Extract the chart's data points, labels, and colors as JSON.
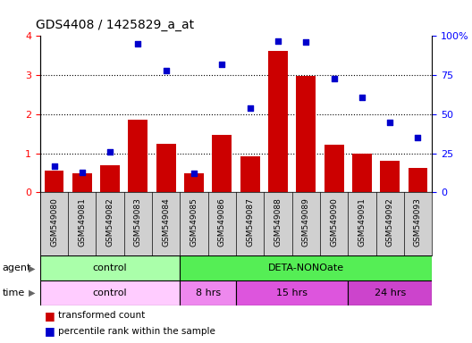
{
  "title": "GDS4408 / 1425829_a_at",
  "categories": [
    "GSM549080",
    "GSM549081",
    "GSM549082",
    "GSM549083",
    "GSM549084",
    "GSM549085",
    "GSM549086",
    "GSM549087",
    "GSM549088",
    "GSM549089",
    "GSM549090",
    "GSM549091",
    "GSM549092",
    "GSM549093"
  ],
  "bar_values": [
    0.55,
    0.5,
    0.7,
    1.85,
    1.25,
    0.5,
    1.48,
    0.92,
    3.62,
    2.98,
    1.22,
    1.0,
    0.82,
    0.62
  ],
  "scatter_values_pct": [
    17,
    13,
    26,
    95,
    78,
    12,
    82,
    54,
    97,
    96,
    73,
    61,
    45,
    35
  ],
  "bar_color": "#cc0000",
  "scatter_color": "#0000cc",
  "ylim_left": [
    0,
    4
  ],
  "ylim_right": [
    0,
    100
  ],
  "yticks_left": [
    0,
    1,
    2,
    3,
    4
  ],
  "ytick_labels_left": [
    "0",
    "1",
    "2",
    "3",
    "4"
  ],
  "yticks_right": [
    0,
    25,
    50,
    75,
    100
  ],
  "ytick_labels_right": [
    "0",
    "25",
    "50",
    "75",
    "100%"
  ],
  "agent_groups": [
    {
      "label": "control",
      "start": 0,
      "end": 5,
      "color": "#aaffaa"
    },
    {
      "label": "DETA-NONOate",
      "start": 5,
      "end": 14,
      "color": "#55ee55"
    }
  ],
  "time_groups": [
    {
      "label": "control",
      "start": 0,
      "end": 5,
      "color": "#ffccff"
    },
    {
      "label": "8 hrs",
      "start": 5,
      "end": 7,
      "color": "#ee88ee"
    },
    {
      "label": "15 hrs",
      "start": 7,
      "end": 11,
      "color": "#dd55dd"
    },
    {
      "label": "24 hrs",
      "start": 11,
      "end": 14,
      "color": "#cc44cc"
    }
  ],
  "legend_bar_label": "transformed count",
  "legend_scatter_label": "percentile rank within the sample",
  "agent_label": "agent",
  "time_label": "time",
  "background_color": "#ffffff",
  "bar_width": 0.7,
  "label_bg_color": "#d0d0d0",
  "gridline_color": "#555555"
}
